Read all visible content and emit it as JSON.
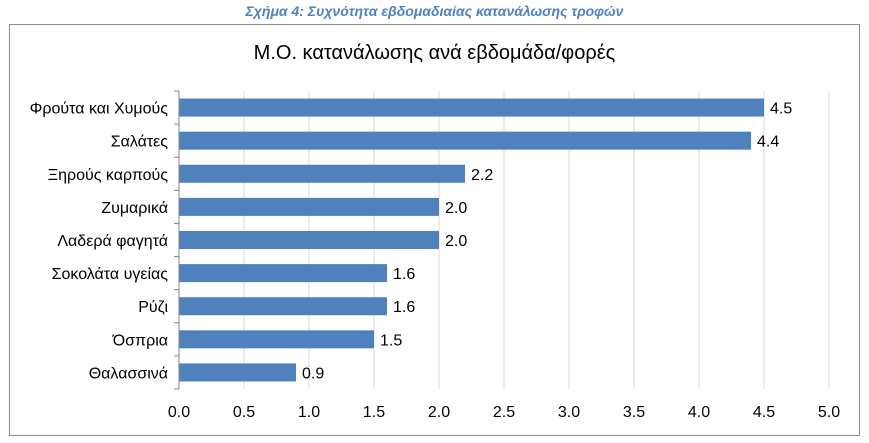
{
  "caption": "Σχήμα 4: Συχνότητα εβδομαδιαίας κατανάλωσης τροφών",
  "chart_data": {
    "type": "bar",
    "orientation": "horizontal",
    "title": "Μ.Ο. κατανάλωσης ανά εβδομάδα/φορές",
    "categories": [
      "Φρούτα και Χυμούς",
      "Σαλάτες",
      "Ξηρούς καρπούς",
      "Ζυμαρικά",
      "Λαδερά φαγητά",
      "Σοκολάτα υγείας",
      "Ρύζι",
      "Όσπρια",
      "Θαλασσινά"
    ],
    "values": [
      4.5,
      4.4,
      2.2,
      2.0,
      2.0,
      1.6,
      1.6,
      1.5,
      0.9
    ],
    "value_labels": [
      "4.5",
      "4.4",
      "2.2",
      "2.0",
      "2.0",
      "1.6",
      "1.6",
      "1.5",
      "0.9"
    ],
    "xlim": [
      0,
      5
    ],
    "ticks": [
      "0.0",
      "0.5",
      "1.0",
      "1.5",
      "2.0",
      "2.5",
      "3.0",
      "3.5",
      "4.0",
      "4.5",
      "5.0"
    ],
    "tick_values": [
      0,
      0.5,
      1,
      1.5,
      2,
      2.5,
      3,
      3.5,
      4,
      4.5,
      5
    ],
    "grid": "vertical",
    "bar_color": "#4f81bd",
    "grid_color": "#d9d9d9"
  }
}
